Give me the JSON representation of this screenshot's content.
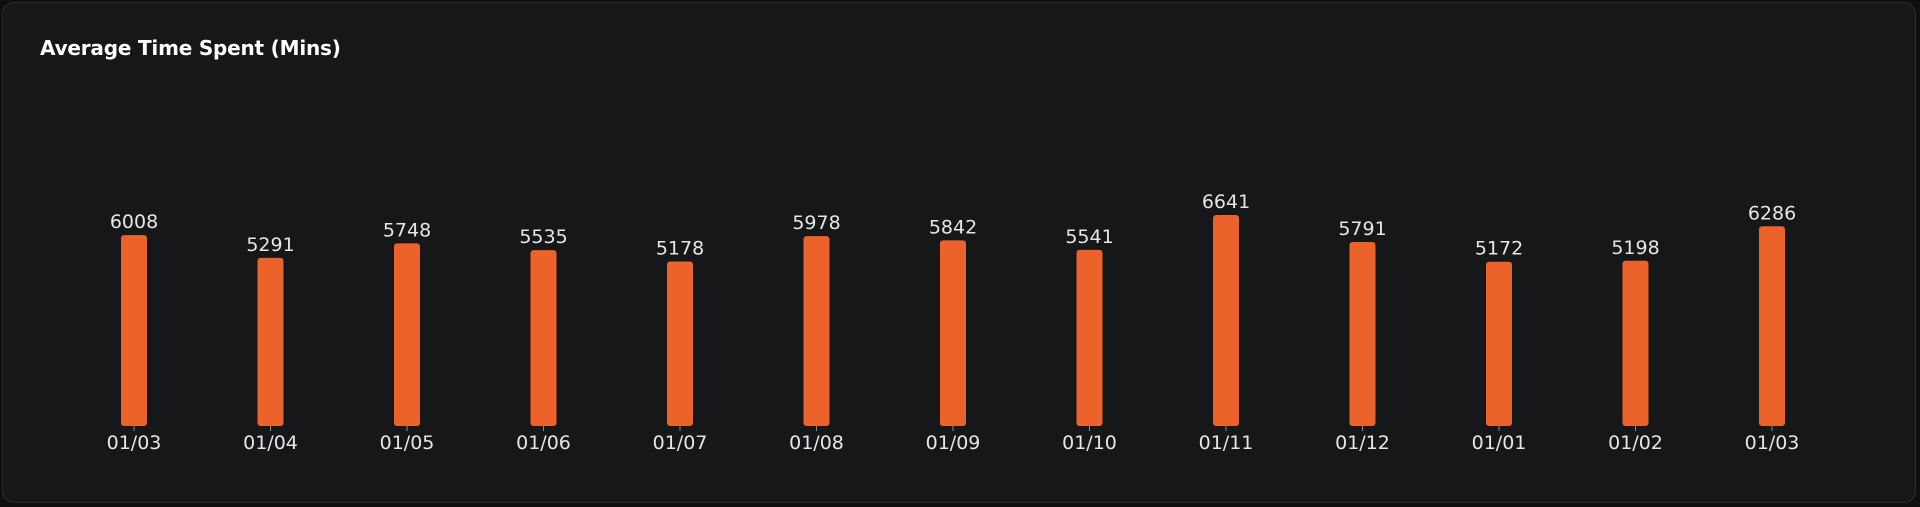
{
  "card": {
    "title": "Average Time Spent (Mins)"
  },
  "chart_data": {
    "type": "bar",
    "title": "Average Time Spent (Mins)",
    "xlabel": "",
    "ylabel": "",
    "categories": [
      "01/03",
      "01/04",
      "01/05",
      "01/06",
      "01/07",
      "01/08",
      "01/09",
      "01/10",
      "01/11",
      "01/12",
      "01/01",
      "01/02",
      "01/03"
    ],
    "values": [
      6008,
      5291,
      5748,
      5535,
      5178,
      5978,
      5842,
      5541,
      6641,
      5791,
      5172,
      5198,
      6286
    ],
    "ylim": [
      0,
      6641
    ],
    "grid": false,
    "legend": "none",
    "data_labels": true,
    "colors": {
      "bar": "#ec622b",
      "label": "#e6e6e6",
      "axis_tick": "#8a8a8a"
    }
  }
}
